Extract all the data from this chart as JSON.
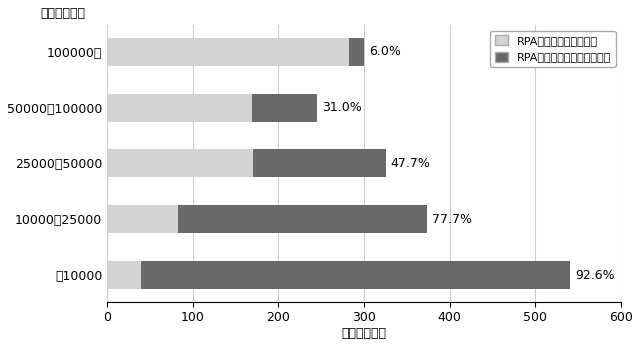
{
  "categories": [
    "100000～",
    "50000～100000",
    "25000～50000",
    "10000～25000",
    "～10000"
  ],
  "introduced": [
    282,
    169,
    170,
    83,
    40
  ],
  "not_introduced": [
    18,
    76,
    155,
    290,
    500
  ],
  "percentages": [
    "6.0%",
    "31.0%",
    "47.7%",
    "77.7%",
    "92.6%"
  ],
  "color_introduced": "#d3d3d3",
  "color_not_introduced": "#696969",
  "xlabel": "自治体（数）",
  "ylabel": "住民数（人）",
  "xlim": [
    0,
    600
  ],
  "xticks": [
    0,
    100,
    200,
    300,
    400,
    500,
    600
  ],
  "legend_introduced": "RPAを導入済みの自治体",
  "legend_not_introduced": "RPAを導入していない自治体",
  "bg_color": "#ffffff",
  "grid_color": "#cccccc"
}
